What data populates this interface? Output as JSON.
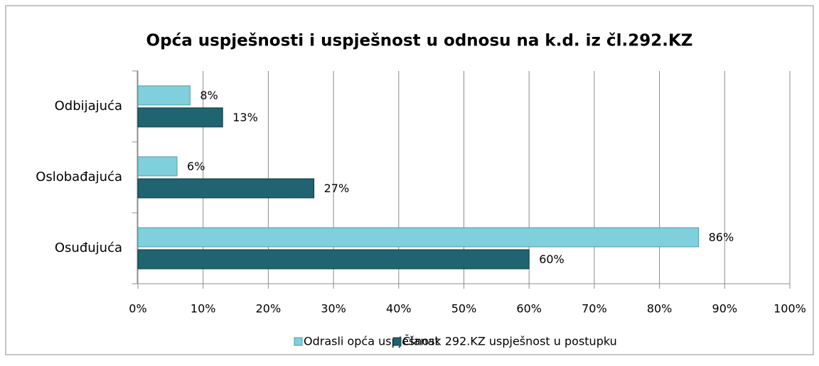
{
  "chart_data": {
    "type": "hbar",
    "title": "Opća uspješnosti i uspješnost u odnosu na k.d. iz čl.292.KZ",
    "categories": [
      "Odbijajuća",
      "Oslobađajuća",
      "Osuđujuća"
    ],
    "series": [
      {
        "name": "Odrasli opća uspješnost",
        "color": "#7fcfdc",
        "values": [
          8,
          6,
          86
        ],
        "value_labels": [
          "8%",
          "6%",
          "86%"
        ]
      },
      {
        "name": "Članak 292.KZ uspješnost u postupku",
        "color": "#1f6470",
        "values": [
          13,
          27,
          60
        ],
        "value_labels": [
          "13%",
          "27%",
          "60%"
        ]
      }
    ],
    "xlim": [
      0,
      100
    ],
    "xticks": [
      {
        "value": 0,
        "label": "0%"
      },
      {
        "value": 10,
        "label": "10%"
      },
      {
        "value": 20,
        "label": "20%"
      },
      {
        "value": 30,
        "label": "30%"
      },
      {
        "value": 40,
        "label": "40%"
      },
      {
        "value": 50,
        "label": "50%"
      },
      {
        "value": 60,
        "label": "60%"
      },
      {
        "value": 70,
        "label": "70%"
      },
      {
        "value": 80,
        "label": "80%"
      },
      {
        "value": 90,
        "label": "90%"
      },
      {
        "value": 100,
        "label": "100%"
      }
    ],
    "grid": true,
    "legend": "bottom"
  }
}
